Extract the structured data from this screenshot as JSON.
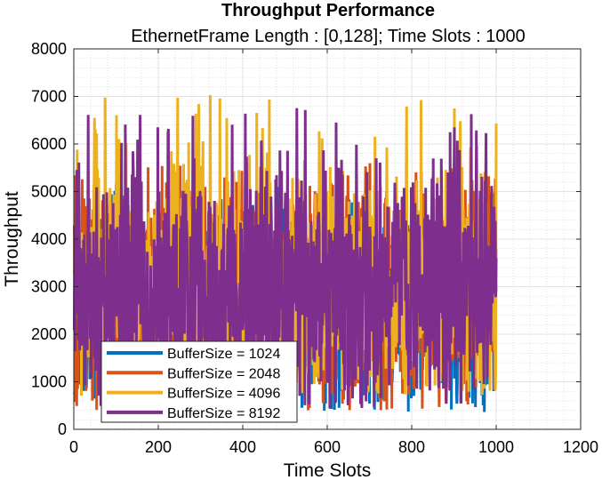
{
  "chart_data": {
    "type": "line",
    "title": "Throughput Performance",
    "subtitle": "EthernetFrame Length : [0,128]; Time Slots : 1000",
    "xlabel": "Time Slots",
    "ylabel": "Throughput",
    "xlim": [
      0,
      1200
    ],
    "ylim": [
      0,
      8000
    ],
    "xticks": [
      0,
      200,
      400,
      600,
      800,
      1000,
      1200
    ],
    "yticks": [
      0,
      1000,
      2000,
      3000,
      4000,
      5000,
      6000,
      7000,
      8000
    ],
    "grid": "on (major + minor, dotted)",
    "legend_location": "bottom-left",
    "x_range_of_data": [
      1,
      1000
    ],
    "series": [
      {
        "name": "BufferSize = 1024",
        "color": "#0072BD",
        "approx_range": [
          350,
          5100
        ],
        "typical_band": [
          1300,
          4200
        ]
      },
      {
        "name": "BufferSize = 2048",
        "color": "#D95319",
        "approx_range": [
          400,
          5600
        ],
        "typical_band": [
          1400,
          4300
        ]
      },
      {
        "name": "BufferSize = 4096",
        "color": "#EDB120",
        "approx_range": [
          700,
          7050
        ],
        "typical_band": [
          1500,
          4500
        ]
      },
      {
        "name": "BufferSize = 8192",
        "color": "#7E2F8E",
        "approx_range": [
          400,
          6800
        ],
        "typical_band": [
          1600,
          4400
        ]
      }
    ]
  }
}
